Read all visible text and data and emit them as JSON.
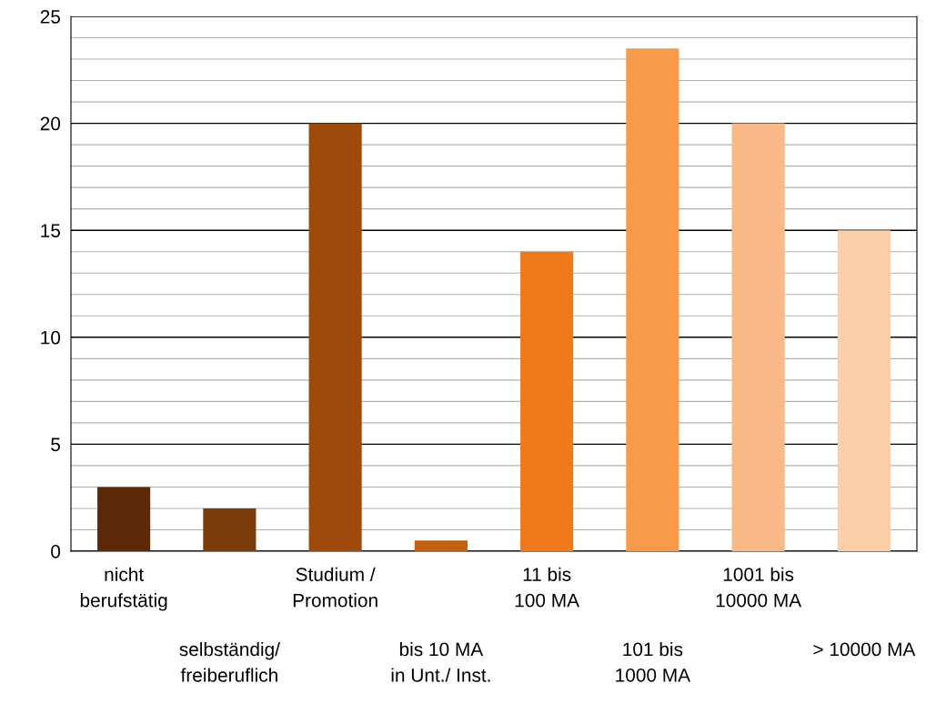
{
  "chart_data": {
    "type": "bar",
    "categories": [
      "nicht\nberufstätig",
      "selbständig/\nfreiberuflich",
      "Studium /\nPromotion",
      "bis 10 MA\nin Unt./ Inst.",
      "11 bis\n100 MA",
      "101 bis\n1000 MA",
      "1001 bis\n10000 MA",
      "> 10000 MA"
    ],
    "values": [
      3,
      2,
      20,
      0.5,
      14,
      23.5,
      20,
      15
    ],
    "colors": [
      "#5c2a08",
      "#7b3c0c",
      "#9e4a0a",
      "#c45f0e",
      "#f07a1a",
      "#f79a4a",
      "#f8b887",
      "#fbcfa8"
    ],
    "ylim": [
      0,
      25
    ],
    "yticks": [
      0,
      {
        "value": 1,
        "label": null
      },
      {
        "value": 2,
        "label": null
      },
      {
        "value": 3,
        "label": null
      },
      {
        "value": 4,
        "label": null
      },
      5,
      {
        "value": 6,
        "label": null
      },
      {
        "value": 7,
        "label": null
      },
      {
        "value": 8,
        "label": null
      },
      {
        "value": 9,
        "label": null
      },
      10,
      {
        "value": 11,
        "label": null
      },
      {
        "value": 12,
        "label": null
      },
      {
        "value": 13,
        "label": null
      },
      {
        "value": 14,
        "label": null
      },
      15,
      {
        "value": 16,
        "label": null
      },
      {
        "value": 17,
        "label": null
      },
      {
        "value": 18,
        "label": null
      },
      {
        "value": 19,
        "label": null
      },
      20,
      {
        "value": 21,
        "label": null
      },
      {
        "value": 22,
        "label": null
      },
      {
        "value": 23,
        "label": null
      },
      {
        "value": 24,
        "label": null
      },
      25
    ],
    "grid": "y"
  }
}
